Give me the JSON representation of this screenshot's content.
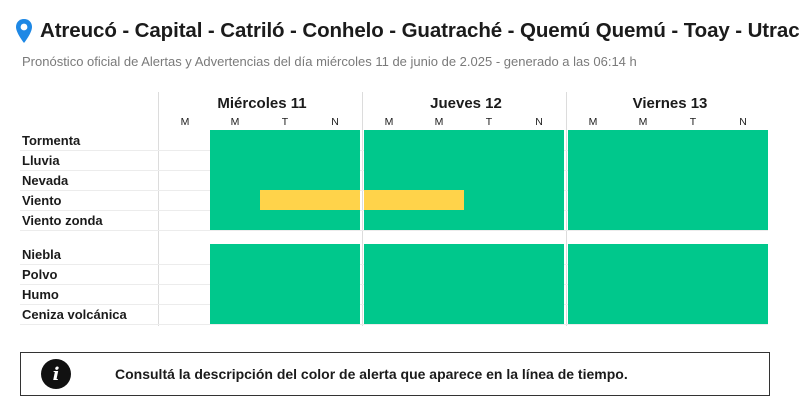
{
  "header": {
    "title": "Atreucó - Capital - Catriló - Conhelo - Guatraché - Quemú Quemú - Toay - Utracán",
    "subtitle": "Pronóstico oficial de Alertas y Advertencias del día miércoles 11 de junio de 2.025 - generado a las 06:14 h",
    "pin_icon": "location-pin-icon",
    "pin_color": "#1e88e5"
  },
  "days": [
    {
      "label": "Miércoles 11",
      "periods": [
        "M",
        "M",
        "T",
        "N"
      ]
    },
    {
      "label": "Jueves 12",
      "periods": [
        "M",
        "M",
        "T",
        "N"
      ]
    },
    {
      "label": "Viernes 13",
      "periods": [
        "M",
        "M",
        "T",
        "N"
      ]
    }
  ],
  "colors": {
    "green": "#00c88c",
    "yellow": "#ffd34a"
  },
  "groups": [
    {
      "rows": [
        {
          "label": "Tormenta",
          "levels": [
            "none",
            "green",
            "green",
            "green",
            "green",
            "green",
            "green",
            "green",
            "green",
            "green",
            "green",
            "green"
          ]
        },
        {
          "label": "Lluvia",
          "levels": [
            "none",
            "green",
            "green",
            "green",
            "green",
            "green",
            "green",
            "green",
            "green",
            "green",
            "green",
            "green"
          ]
        },
        {
          "label": "Nevada",
          "levels": [
            "none",
            "green",
            "green",
            "green",
            "green",
            "green",
            "green",
            "green",
            "green",
            "green",
            "green",
            "green"
          ]
        },
        {
          "label": "Viento",
          "levels": [
            "none",
            "green",
            "yellow",
            "yellow",
            "yellow",
            "yellow",
            "green",
            "green",
            "green",
            "green",
            "green",
            "green"
          ]
        },
        {
          "label": "Viento zonda",
          "levels": [
            "none",
            "green",
            "green",
            "green",
            "green",
            "green",
            "green",
            "green",
            "green",
            "green",
            "green",
            "green"
          ]
        }
      ]
    },
    {
      "rows": [
        {
          "label": "Niebla",
          "levels": [
            "none",
            "green",
            "green",
            "green",
            "green",
            "green",
            "green",
            "green",
            "green",
            "green",
            "green",
            "green"
          ]
        },
        {
          "label": "Polvo",
          "levels": [
            "none",
            "green",
            "green",
            "green",
            "green",
            "green",
            "green",
            "green",
            "green",
            "green",
            "green",
            "green"
          ]
        },
        {
          "label": "Humo",
          "levels": [
            "none",
            "green",
            "green",
            "green",
            "green",
            "green",
            "green",
            "green",
            "green",
            "green",
            "green",
            "green"
          ]
        },
        {
          "label": "Ceniza volcánica",
          "levels": [
            "none",
            "green",
            "green",
            "green",
            "green",
            "green",
            "green",
            "green",
            "green",
            "green",
            "green",
            "green"
          ]
        }
      ]
    }
  ],
  "info": {
    "icon": "info-icon",
    "text": "Consultá la descripción del color de alerta que aparece en la línea de tiempo."
  }
}
